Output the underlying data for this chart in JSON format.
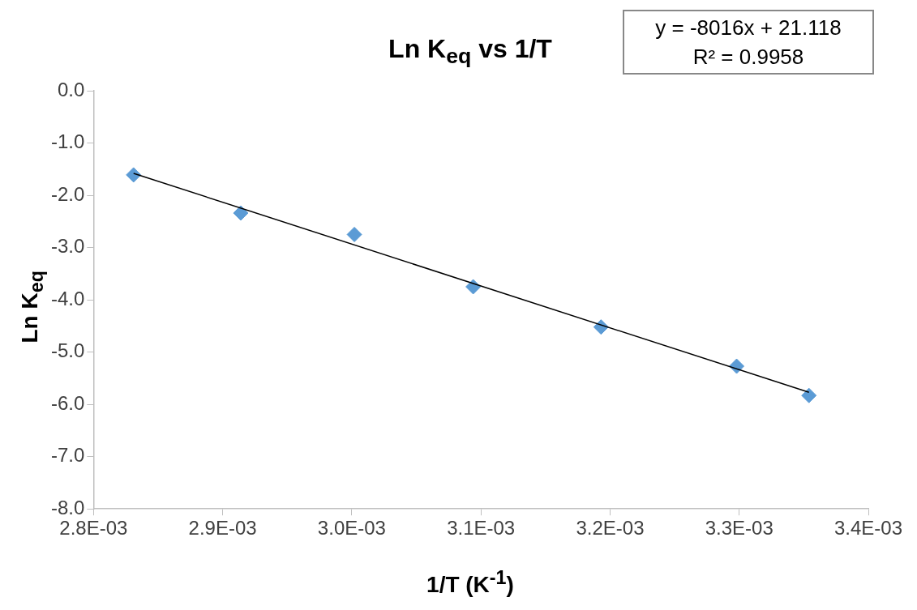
{
  "chart_data": {
    "type": "scatter",
    "title": "Ln K$_{eq}$ vs 1/T",
    "xlabel": "1/T (K$^{-1}$)",
    "ylabel": "Ln K$_{eq}$",
    "annotations": [
      "y = -8016x + 21.118",
      "R² = 0.9958"
    ],
    "series": [
      {
        "type": "scatter",
        "color": "#5b9bd5",
        "marker": "diamond",
        "x": [
          0.002831,
          0.002914,
          0.003002,
          0.003094,
          0.003193,
          0.003298,
          0.003354
        ],
        "values": [
          -1.61,
          -2.34,
          -2.75,
          -3.75,
          -4.52,
          -5.27,
          -5.83
        ]
      },
      {
        "type": "line",
        "color": "#000000",
        "marker": "none",
        "x": [
          0.002831,
          0.003354
        ],
        "values": [
          -1.58,
          -5.77
        ]
      }
    ],
    "xlim": [
      0.0028,
      0.0034
    ],
    "xticks": [
      {
        "value": 0.0028,
        "label": "2.8E-03"
      },
      {
        "value": 0.0029,
        "label": "2.9E-03"
      },
      {
        "value": 0.003,
        "label": "3.0E-03"
      },
      {
        "value": 0.0031,
        "label": "3.1E-03"
      },
      {
        "value": 0.0032,
        "label": "3.2E-03"
      },
      {
        "value": 0.0033,
        "label": "3.3E-03"
      },
      {
        "value": 0.0034,
        "label": "3.4E-03"
      }
    ],
    "ylim": [
      -8,
      0
    ],
    "yticks": [
      {
        "value": 0,
        "label": "0.0"
      },
      {
        "value": -1,
        "label": "-1.0"
      },
      {
        "value": -2,
        "label": "-2.0"
      },
      {
        "value": -3,
        "label": "-3.0"
      },
      {
        "value": -4,
        "label": "-4.0"
      },
      {
        "value": -5,
        "label": "-5.0"
      },
      {
        "value": -6,
        "label": "-6.0"
      },
      {
        "value": -7,
        "label": "-7.0"
      },
      {
        "value": -8,
        "label": "-8.0"
      }
    ],
    "grid": false,
    "legend": false
  }
}
